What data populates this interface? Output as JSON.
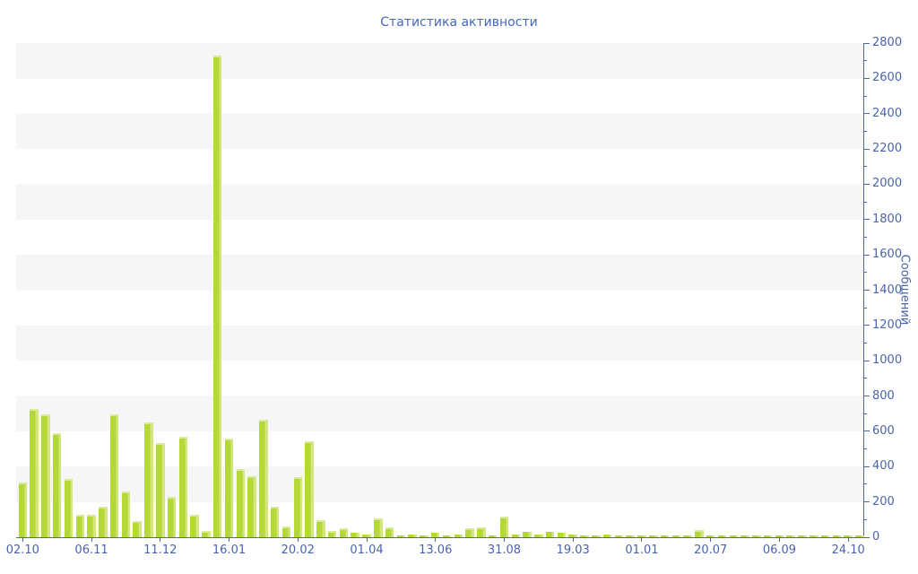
{
  "chart": {
    "title": "Статистика активности",
    "y_axis_title": "Сообщений"
  },
  "colors": {
    "bar_fill": "#b4d836",
    "bar_highlight": "#d2e57e",
    "axis": "#5565a4",
    "tick_label": "#4a63ad",
    "title_text": "#4468b8",
    "band_gray": "#f6f6f6"
  },
  "chart_data": {
    "type": "bar",
    "title": "Статистика активности",
    "xlabel": "",
    "ylabel": "Сообщений",
    "ylim": [
      0,
      2800
    ],
    "y_tick_step": 200,
    "y_minor_tick_step": 100,
    "legend": "none",
    "grid": "alternating horizontal bands every 200 units",
    "x_tick_labels": [
      "02.10",
      "06.11",
      "11.12",
      "16.01",
      "20.02",
      "01.04",
      "13.06",
      "31.08",
      "19.03",
      "01.01",
      "20.07",
      "06.09",
      "24.10"
    ],
    "x_tick_bar_indices": [
      0,
      6,
      12,
      18,
      24,
      30,
      36,
      42,
      48,
      54,
      60,
      66,
      72
    ],
    "values": [
      310,
      728,
      697,
      590,
      328,
      127,
      127,
      172,
      696,
      257,
      90,
      652,
      535,
      227,
      567,
      125,
      38,
      2730,
      560,
      384,
      345,
      667,
      171,
      62,
      340,
      546,
      96,
      37,
      49,
      25,
      13,
      108,
      57,
      12,
      15,
      12,
      24,
      12,
      17,
      49,
      58,
      12,
      118,
      15,
      30,
      15,
      29,
      25,
      15,
      12,
      12,
      15,
      12,
      8,
      8,
      12,
      8,
      12,
      12,
      42,
      12,
      10,
      8,
      10,
      8,
      10,
      8,
      10,
      8,
      10,
      8,
      10,
      8,
      10
    ]
  }
}
